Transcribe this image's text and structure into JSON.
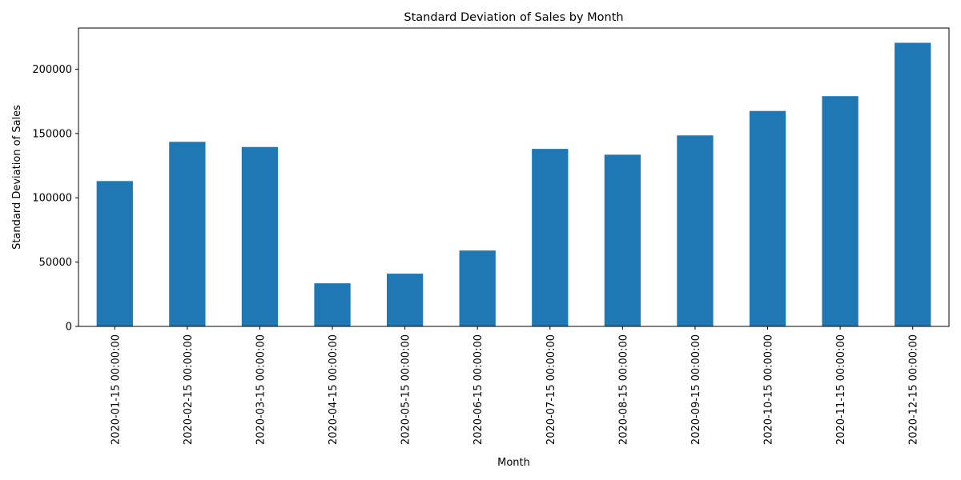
{
  "chart_data": {
    "type": "bar",
    "title": "Standard Deviation of Sales by Month",
    "xlabel": "Month",
    "ylabel": "Standard Deviation of Sales",
    "categories": [
      "2020-01-15 00:00:00",
      "2020-02-15 00:00:00",
      "2020-03-15 00:00:00",
      "2020-04-15 00:00:00",
      "2020-05-15 00:00:00",
      "2020-06-15 00:00:00",
      "2020-07-15 00:00:00",
      "2020-08-15 00:00:00",
      "2020-09-15 00:00:00",
      "2020-10-15 00:00:00",
      "2020-11-15 00:00:00",
      "2020-12-15 00:00:00"
    ],
    "values": [
      113000,
      143500,
      139500,
      33500,
      41000,
      59000,
      138000,
      133500,
      148500,
      167500,
      179000,
      220500
    ],
    "ylim": [
      0,
      232000
    ],
    "yticks": [
      0,
      50000,
      100000,
      150000,
      200000
    ],
    "ytick_labels": [
      "0",
      "50000",
      "100000",
      "150000",
      "200000"
    ],
    "grid": false,
    "bar_color": "#1f77b4"
  }
}
